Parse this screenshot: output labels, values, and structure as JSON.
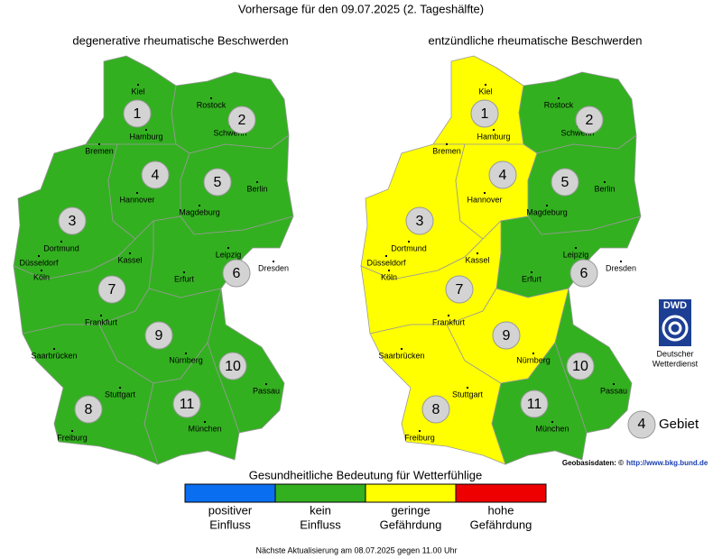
{
  "title": "Vorhersage für den 09.07.2025 (2. Tageshälfte)",
  "maps": [
    {
      "title": "degenerative rheumatische Beschwerden",
      "regions": [
        {
          "label": "1",
          "color": "#33b020"
        },
        {
          "label": "2",
          "color": "#33b020"
        },
        {
          "label": "3",
          "color": "#33b020"
        },
        {
          "label": "4",
          "color": "#33b020"
        },
        {
          "label": "5",
          "color": "#33b020"
        },
        {
          "label": "6",
          "color": "#33b020"
        },
        {
          "label": "7",
          "color": "#33b020"
        },
        {
          "label": "8",
          "color": "#33b020"
        },
        {
          "label": "9",
          "color": "#33b020"
        },
        {
          "label": "10",
          "color": "#33b020"
        },
        {
          "label": "11",
          "color": "#33b020"
        }
      ]
    },
    {
      "title": "entzündliche rheumatische Beschwerden",
      "regions": [
        {
          "label": "1",
          "color": "#ffff00"
        },
        {
          "label": "2",
          "color": "#33b020"
        },
        {
          "label": "3",
          "color": "#ffff00"
        },
        {
          "label": "4",
          "color": "#ffff00"
        },
        {
          "label": "5",
          "color": "#33b020"
        },
        {
          "label": "6",
          "color": "#33b020"
        },
        {
          "label": "7",
          "color": "#ffff00"
        },
        {
          "label": "8",
          "color": "#ffff00"
        },
        {
          "label": "9",
          "color": "#ffff00"
        },
        {
          "label": "10",
          "color": "#33b020"
        },
        {
          "label": "11",
          "color": "#33b020"
        }
      ]
    }
  ],
  "cities": [
    "Kiel",
    "Rostock",
    "Hamburg",
    "Schwerin",
    "Bremen",
    "Hannover",
    "Berlin",
    "Magdeburg",
    "Dortmund",
    "Düsseldorf",
    "Köln",
    "Kassel",
    "Leipzig",
    "Dresden",
    "Erfurt",
    "Frankfurt",
    "Saarbrücken",
    "Nürnberg",
    "Stuttgart",
    "Passau",
    "München",
    "Freiburg"
  ],
  "key": {
    "number": "4",
    "label": "Gebiet"
  },
  "logo": {
    "abbr": "DWD",
    "lines": [
      "Deutscher",
      "Wetterdienst"
    ]
  },
  "source": {
    "text": "Geobasisdaten: ©",
    "link": "http://www.bkg.bund.de"
  },
  "legend": {
    "title": "Gesundheitliche Bedeutung für Wetterfühlige",
    "items": [
      {
        "lines": [
          "positiver",
          "Einfluss"
        ],
        "color": "#0a6ef0"
      },
      {
        "lines": [
          "kein",
          "Einfluss"
        ],
        "color": "#33b020"
      },
      {
        "lines": [
          "geringe",
          "Gefährdung"
        ],
        "color": "#ffff00"
      },
      {
        "lines": [
          "hohe",
          "Gefährdung"
        ],
        "color": "#ee0000"
      }
    ]
  },
  "footer": "Nächste Aktualisierung am 08.07.2025 gegen 11.00 Uhr"
}
